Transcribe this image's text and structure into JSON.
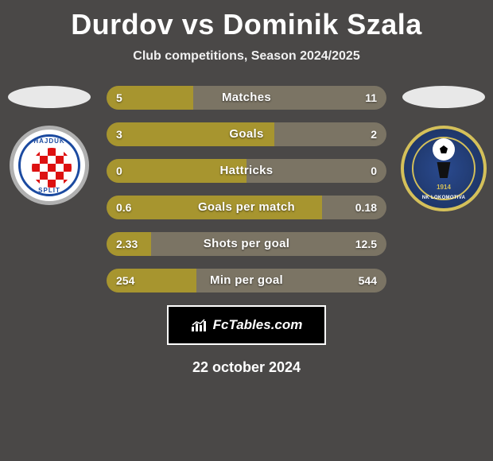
{
  "title": "Durdov vs Dominik Szala",
  "subtitle": "Club competitions, Season 2024/2025",
  "date": "22 october 2024",
  "branding": {
    "text": "FcTables.com"
  },
  "colors": {
    "left": "#a7952f",
    "right": "#7b7464",
    "background": "#4a4847",
    "branding_bg": "#000000",
    "branding_border": "#ffffff"
  },
  "players": {
    "left": {
      "name": "Durdov",
      "club": "Hajduk Split"
    },
    "right": {
      "name": "Dominik Szala",
      "club": "NK Lokomotiva Zagreb",
      "year": "1914"
    }
  },
  "bars": [
    {
      "label": "Matches",
      "left_val": "5",
      "right_val": "11",
      "left_pct": 31,
      "right_pct": 69
    },
    {
      "label": "Goals",
      "left_val": "3",
      "right_val": "2",
      "left_pct": 60,
      "right_pct": 40
    },
    {
      "label": "Hattricks",
      "left_val": "0",
      "right_val": "0",
      "left_pct": 50,
      "right_pct": 50
    },
    {
      "label": "Goals per match",
      "left_val": "0.6",
      "right_val": "0.18",
      "left_pct": 77,
      "right_pct": 23
    },
    {
      "label": "Shots per goal",
      "left_val": "2.33",
      "right_val": "12.5",
      "left_pct": 16,
      "right_pct": 84
    },
    {
      "label": "Min per goal",
      "left_val": "254",
      "right_val": "544",
      "left_pct": 32,
      "right_pct": 68
    }
  ]
}
